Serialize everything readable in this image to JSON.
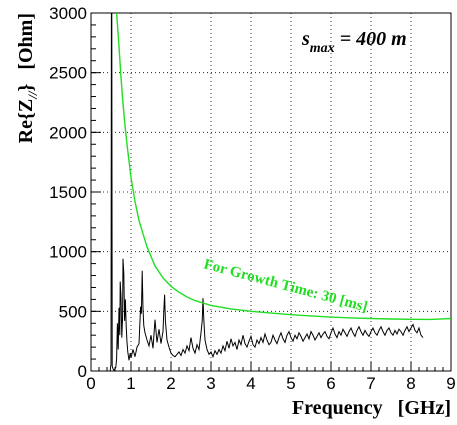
{
  "chart_data": {
    "type": "line",
    "xlabel": "Frequency   [GHz]",
    "ylabel": "Re{Z//}   [Ohm]",
    "ylabel_parts": {
      "main": "Re{Z",
      "sub": "//",
      "close": "}",
      "unit": "[Ohm]"
    },
    "xlim": [
      0,
      9
    ],
    "ylim": [
      0,
      3000
    ],
    "x_ticks": [
      0,
      1,
      2,
      3,
      4,
      5,
      6,
      7,
      8,
      9
    ],
    "y_ticks": [
      0,
      500,
      1000,
      1500,
      2000,
      2500,
      3000
    ],
    "x_tick_labels": [
      "0",
      "1",
      "2",
      "3",
      "4",
      "5",
      "6",
      "7",
      "8",
      "9"
    ],
    "y_tick_labels": [
      "0",
      "500",
      "1000",
      "1500",
      "2000",
      "2500",
      "3000"
    ],
    "grid": true,
    "annotation": {
      "prefix": "s",
      "sub": "max",
      "suffix": " = 400 m"
    },
    "series": [
      {
        "color": "#000000",
        "values": [
          [
            0.48,
            0
          ],
          [
            0.5,
            60
          ],
          [
            0.51,
            3000
          ],
          [
            0.52,
            3000
          ],
          [
            0.53,
            40
          ],
          [
            0.55,
            20
          ],
          [
            0.58,
            5
          ],
          [
            0.62,
            30
          ],
          [
            0.64,
            100
          ],
          [
            0.66,
            400
          ],
          [
            0.68,
            180
          ],
          [
            0.7,
            530
          ],
          [
            0.72,
            300
          ],
          [
            0.73,
            750
          ],
          [
            0.75,
            620
          ],
          [
            0.77,
            280
          ],
          [
            0.79,
            450
          ],
          [
            0.8,
            940
          ],
          [
            0.82,
            820
          ],
          [
            0.84,
            420
          ],
          [
            0.86,
            600
          ],
          [
            0.88,
            370
          ],
          [
            0.9,
            240
          ],
          [
            0.92,
            160
          ],
          [
            0.95,
            90
          ],
          [
            0.98,
            150
          ],
          [
            1.0,
            110
          ],
          [
            1.05,
            180
          ],
          [
            1.1,
            120
          ],
          [
            1.15,
            200
          ],
          [
            1.2,
            230
          ],
          [
            1.24,
            540
          ],
          [
            1.26,
            480
          ],
          [
            1.28,
            840
          ],
          [
            1.3,
            520
          ],
          [
            1.32,
            380
          ],
          [
            1.35,
            320
          ],
          [
            1.4,
            260
          ],
          [
            1.45,
            210
          ],
          [
            1.5,
            300
          ],
          [
            1.55,
            190
          ],
          [
            1.6,
            430
          ],
          [
            1.65,
            240
          ],
          [
            1.7,
            350
          ],
          [
            1.75,
            230
          ],
          [
            1.8,
            330
          ],
          [
            1.82,
            500
          ],
          [
            1.84,
            640
          ],
          [
            1.86,
            420
          ],
          [
            1.9,
            260
          ],
          [
            1.95,
            200
          ],
          [
            2.0,
            150
          ],
          [
            2.05,
            130
          ],
          [
            2.1,
            120
          ],
          [
            2.15,
            140
          ],
          [
            2.2,
            160
          ],
          [
            2.25,
            130
          ],
          [
            2.3,
            180
          ],
          [
            2.35,
            150
          ],
          [
            2.4,
            210
          ],
          [
            2.45,
            170
          ],
          [
            2.5,
            280
          ],
          [
            2.55,
            190
          ],
          [
            2.6,
            150
          ],
          [
            2.65,
            220
          ],
          [
            2.7,
            180
          ],
          [
            2.75,
            320
          ],
          [
            2.78,
            420
          ],
          [
            2.8,
            610
          ],
          [
            2.82,
            430
          ],
          [
            2.85,
            260
          ],
          [
            2.9,
            180
          ],
          [
            2.95,
            140
          ],
          [
            3.0,
            160
          ],
          [
            3.05,
            120
          ],
          [
            3.1,
            170
          ],
          [
            3.15,
            140
          ],
          [
            3.2,
            180
          ],
          [
            3.25,
            150
          ],
          [
            3.3,
            210
          ],
          [
            3.35,
            170
          ],
          [
            3.4,
            250
          ],
          [
            3.45,
            190
          ],
          [
            3.5,
            270
          ],
          [
            3.55,
            210
          ],
          [
            3.6,
            240
          ],
          [
            3.65,
            180
          ],
          [
            3.7,
            260
          ],
          [
            3.75,
            220
          ],
          [
            3.8,
            300
          ],
          [
            3.85,
            230
          ],
          [
            3.9,
            200
          ],
          [
            3.95,
            250
          ],
          [
            4.0,
            290
          ],
          [
            4.05,
            220
          ],
          [
            4.1,
            200
          ],
          [
            4.15,
            260
          ],
          [
            4.2,
            230
          ],
          [
            4.25,
            280
          ],
          [
            4.3,
            240
          ],
          [
            4.35,
            310
          ],
          [
            4.4,
            260
          ],
          [
            4.45,
            220
          ],
          [
            4.5,
            240
          ],
          [
            4.55,
            300
          ],
          [
            4.6,
            260
          ],
          [
            4.65,
            230
          ],
          [
            4.7,
            280
          ],
          [
            4.75,
            320
          ],
          [
            4.8,
            270
          ],
          [
            4.85,
            240
          ],
          [
            4.9,
            300
          ],
          [
            4.95,
            330
          ],
          [
            5.0,
            280
          ],
          [
            5.05,
            250
          ],
          [
            5.1,
            300
          ],
          [
            5.15,
            270
          ],
          [
            5.2,
            320
          ],
          [
            5.25,
            290
          ],
          [
            5.3,
            250
          ],
          [
            5.35,
            280
          ],
          [
            5.4,
            310
          ],
          [
            5.45,
            270
          ],
          [
            5.5,
            330
          ],
          [
            5.55,
            300
          ],
          [
            5.6,
            260
          ],
          [
            5.65,
            290
          ],
          [
            5.7,
            320
          ],
          [
            5.75,
            280
          ],
          [
            5.8,
            310
          ],
          [
            5.85,
            330
          ],
          [
            5.9,
            290
          ],
          [
            5.95,
            270
          ],
          [
            6.0,
            320
          ],
          [
            6.05,
            360
          ],
          [
            6.1,
            310
          ],
          [
            6.15,
            280
          ],
          [
            6.2,
            330
          ],
          [
            6.25,
            300
          ],
          [
            6.3,
            350
          ],
          [
            6.35,
            320
          ],
          [
            6.4,
            290
          ],
          [
            6.45,
            330
          ],
          [
            6.5,
            360
          ],
          [
            6.55,
            320
          ],
          [
            6.6,
            290
          ],
          [
            6.65,
            340
          ],
          [
            6.7,
            370
          ],
          [
            6.75,
            330
          ],
          [
            6.8,
            300
          ],
          [
            6.85,
            340
          ],
          [
            6.9,
            310
          ],
          [
            6.95,
            290
          ],
          [
            7.0,
            330
          ],
          [
            7.05,
            360
          ],
          [
            7.1,
            320
          ],
          [
            7.15,
            300
          ],
          [
            7.2,
            340
          ],
          [
            7.25,
            370
          ],
          [
            7.3,
            330
          ],
          [
            7.35,
            300
          ],
          [
            7.4,
            340
          ],
          [
            7.45,
            360
          ],
          [
            7.5,
            320
          ],
          [
            7.55,
            300
          ],
          [
            7.6,
            340
          ],
          [
            7.65,
            310
          ],
          [
            7.7,
            350
          ],
          [
            7.75,
            330
          ],
          [
            7.8,
            300
          ],
          [
            7.85,
            340
          ],
          [
            7.9,
            370
          ],
          [
            7.95,
            330
          ],
          [
            8.0,
            360
          ],
          [
            8.05,
            390
          ],
          [
            8.1,
            340
          ],
          [
            8.15,
            320
          ],
          [
            8.2,
            360
          ],
          [
            8.25,
            300
          ],
          [
            8.3,
            280
          ]
        ]
      },
      {
        "name": "For Growth Time: 30 [ms]",
        "color": "#22dd22",
        "values": [
          [
            0.64,
            3000
          ],
          [
            0.7,
            2720
          ],
          [
            0.75,
            2460
          ],
          [
            0.8,
            2240
          ],
          [
            0.85,
            2060
          ],
          [
            0.9,
            1900
          ],
          [
            1.0,
            1620
          ],
          [
            1.1,
            1420
          ],
          [
            1.2,
            1260
          ],
          [
            1.4,
            1040
          ],
          [
            1.6,
            880
          ],
          [
            1.8,
            780
          ],
          [
            2.0,
            710
          ],
          [
            2.2,
            660
          ],
          [
            2.4,
            620
          ],
          [
            2.6,
            590
          ],
          [
            2.8,
            570
          ],
          [
            3.0,
            550
          ],
          [
            3.5,
            520
          ],
          [
            4.0,
            500
          ],
          [
            4.5,
            485
          ],
          [
            5.0,
            472
          ],
          [
            5.5,
            462
          ],
          [
            6.0,
            452
          ],
          [
            6.5,
            445
          ],
          [
            7.0,
            440
          ],
          [
            7.5,
            436
          ],
          [
            8.0,
            433
          ],
          [
            8.5,
            432
          ],
          [
            9.0,
            440
          ]
        ]
      }
    ]
  }
}
